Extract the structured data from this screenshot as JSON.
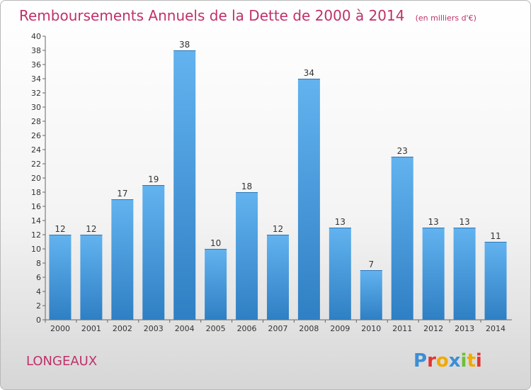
{
  "title": "Remboursements Annuels de la Dette de 2000 à 2014",
  "unit_note": "(en milliers d'€)",
  "place_name": "LONGEAUX",
  "logo": {
    "letters": [
      "P",
      "r",
      "o",
      "x",
      "i",
      "t",
      "i"
    ],
    "colors": [
      "#3a8fd6",
      "#e3342f",
      "#f2a900",
      "#3a8fd6",
      "#6bbf3a",
      "#f2a900",
      "#e3342f"
    ]
  },
  "chart_data": {
    "type": "bar",
    "title": "Remboursements Annuels de la Dette de 2000 à 2014",
    "categories": [
      "2000",
      "2001",
      "2002",
      "2003",
      "2004",
      "2005",
      "2006",
      "2007",
      "2008",
      "2009",
      "2010",
      "2011",
      "2012",
      "2013",
      "2014"
    ],
    "values": [
      12,
      12,
      17,
      19,
      38,
      10,
      18,
      12,
      34,
      13,
      7,
      23,
      13,
      13,
      11
    ],
    "ylim": [
      0,
      40
    ],
    "ytick_step": 2,
    "grid": false,
    "bar_color_top": "#62b3ef",
    "bar_color_bottom": "#2f7fc4"
  }
}
